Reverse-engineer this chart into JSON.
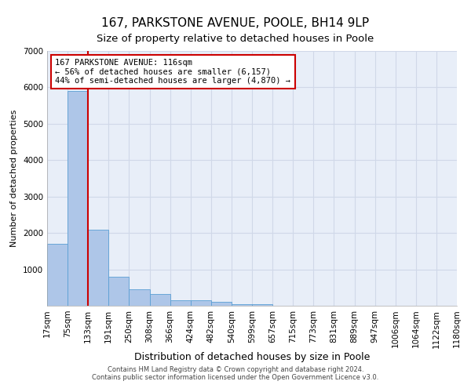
{
  "title1": "167, PARKSTONE AVENUE, POOLE, BH14 9LP",
  "title2": "Size of property relative to detached houses in Poole",
  "xlabel": "Distribution of detached houses by size in Poole",
  "ylabel": "Number of detached properties",
  "bar_values": [
    1700,
    5900,
    2100,
    800,
    450,
    320,
    150,
    150,
    100,
    50,
    50,
    0,
    0,
    0,
    0,
    0,
    0,
    0,
    0,
    0
  ],
  "bin_labels": [
    "17sqm",
    "75sqm",
    "133sqm",
    "191sqm",
    "250sqm",
    "308sqm",
    "366sqm",
    "424sqm",
    "482sqm",
    "540sqm",
    "599sqm",
    "657sqm",
    "715sqm",
    "773sqm",
    "831sqm",
    "889sqm",
    "947sqm",
    "1006sqm",
    "1064sqm",
    "1122sqm",
    "1180sqm"
  ],
  "bar_color": "#aec6e8",
  "bar_edgecolor": "#5a9fd4",
  "annotation_text": "167 PARKSTONE AVENUE: 116sqm\n← 56% of detached houses are smaller (6,157)\n44% of semi-detached houses are larger (4,870) →",
  "annotation_box_color": "#ffffff",
  "annotation_box_edgecolor": "#cc0000",
  "red_line_color": "#cc0000",
  "ylim": [
    0,
    7000
  ],
  "yticks": [
    0,
    1000,
    2000,
    3000,
    4000,
    5000,
    6000,
    7000
  ],
  "grid_color": "#d0d8e8",
  "background_color": "#e8eef8",
  "footer1": "Contains HM Land Registry data © Crown copyright and database right 2024.",
  "footer2": "Contains public sector information licensed under the Open Government Licence v3.0.",
  "title1_fontsize": 11,
  "title2_fontsize": 9.5,
  "xlabel_fontsize": 9,
  "ylabel_fontsize": 8,
  "tick_fontsize": 7.5,
  "footer_fontsize": 6,
  "annotation_fontsize": 7.5
}
